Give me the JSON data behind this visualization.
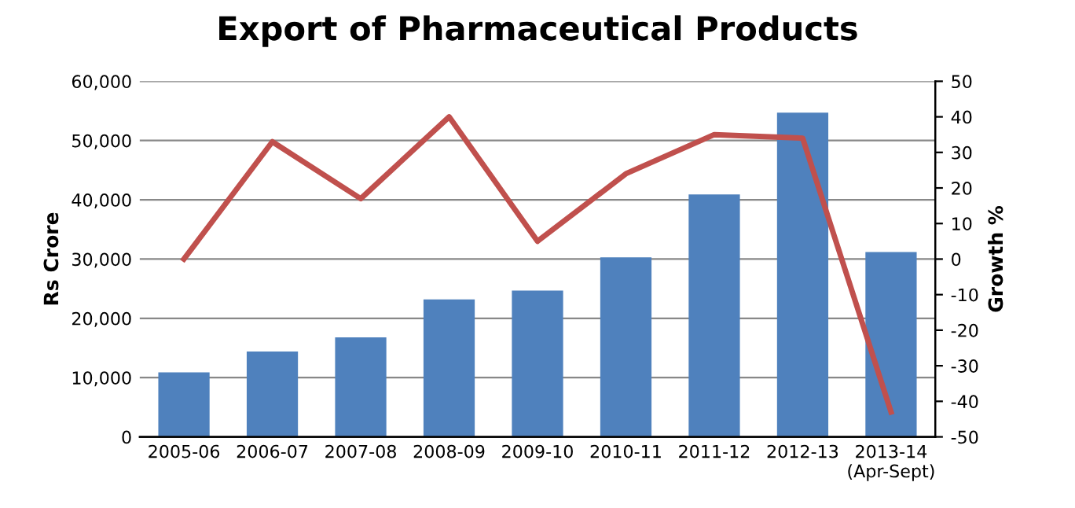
{
  "chart_data": {
    "type": "bar",
    "title": "Export of Pharmaceutical Products",
    "ylabel": "Rs Crore",
    "y2label": "Growth %",
    "categories": [
      "2005-06",
      "2006-07",
      "2007-08",
      "2008-09",
      "2009-10",
      "2010-11",
      "2011-12",
      "2012-13",
      "2013-14\n(Apr-Sept)"
    ],
    "series": [
      {
        "color": "#4f81bd",
        "values": [
          10900,
          14400,
          16800,
          23200,
          24700,
          30300,
          40900,
          54700,
          31200
        ]
      },
      {
        "type": "line",
        "axis": "y2",
        "color": "#c0504d",
        "values": [
          0,
          33,
          17,
          40,
          5,
          24,
          35,
          34,
          -43
        ]
      }
    ],
    "ylim": [
      0,
      60000
    ],
    "yticks": [
      {
        "value": 0,
        "label": "0"
      },
      {
        "value": 10000,
        "label": "10,000"
      },
      {
        "value": 20000,
        "label": "20,000"
      },
      {
        "value": 30000,
        "label": "30,000"
      },
      {
        "value": 40000,
        "label": "40,000"
      },
      {
        "value": 50000,
        "label": "50,000"
      },
      {
        "value": 60000,
        "label": "60,000"
      }
    ],
    "y2lim": [
      -50,
      50
    ],
    "y2ticks": [
      -50,
      -40,
      -30,
      -20,
      -10,
      0,
      10,
      20,
      30,
      40,
      50
    ],
    "grid": "y",
    "marker": "none"
  }
}
